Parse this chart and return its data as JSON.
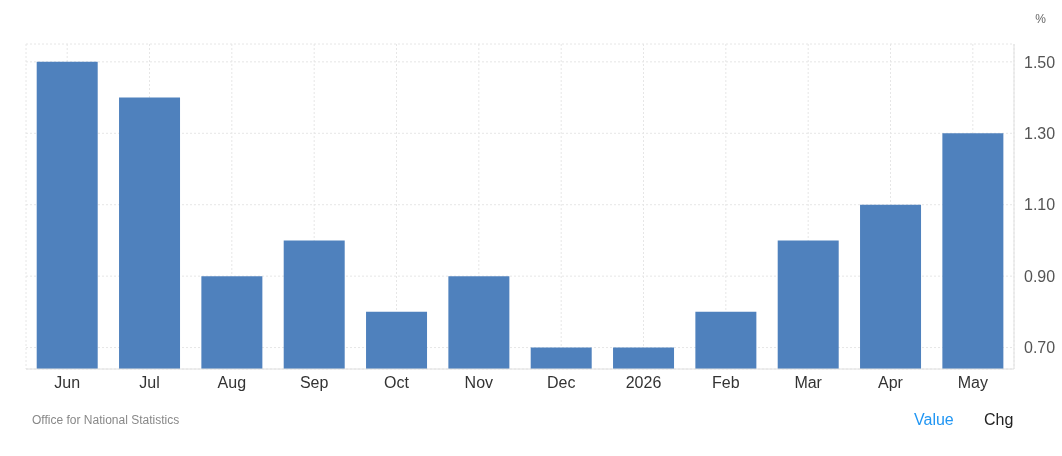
{
  "chart_data": {
    "type": "bar",
    "ylabel": "%",
    "categories": [
      "Jun",
      "Jul",
      "Aug",
      "Sep",
      "Oct",
      "Nov",
      "Dec",
      "2026",
      "Feb",
      "Mar",
      "Apr",
      "May"
    ],
    "values": [
      1.5,
      1.4,
      0.9,
      1.0,
      0.8,
      0.9,
      0.7,
      0.7,
      0.8,
      1.0,
      1.1,
      1.3
    ],
    "color": "#4f81bd",
    "ylim": [
      0.64,
      1.55
    ],
    "yticks": [
      {
        "value": 0.7,
        "label": "0.70"
      },
      {
        "value": 0.9,
        "label": "0.90"
      },
      {
        "value": 1.1,
        "label": "1.10"
      },
      {
        "value": 1.3,
        "label": "1.30"
      },
      {
        "value": 1.5,
        "label": "1.50"
      }
    ],
    "grid": true,
    "annotations": [
      "Office for National Statistics",
      "Value",
      "Chg"
    ]
  }
}
